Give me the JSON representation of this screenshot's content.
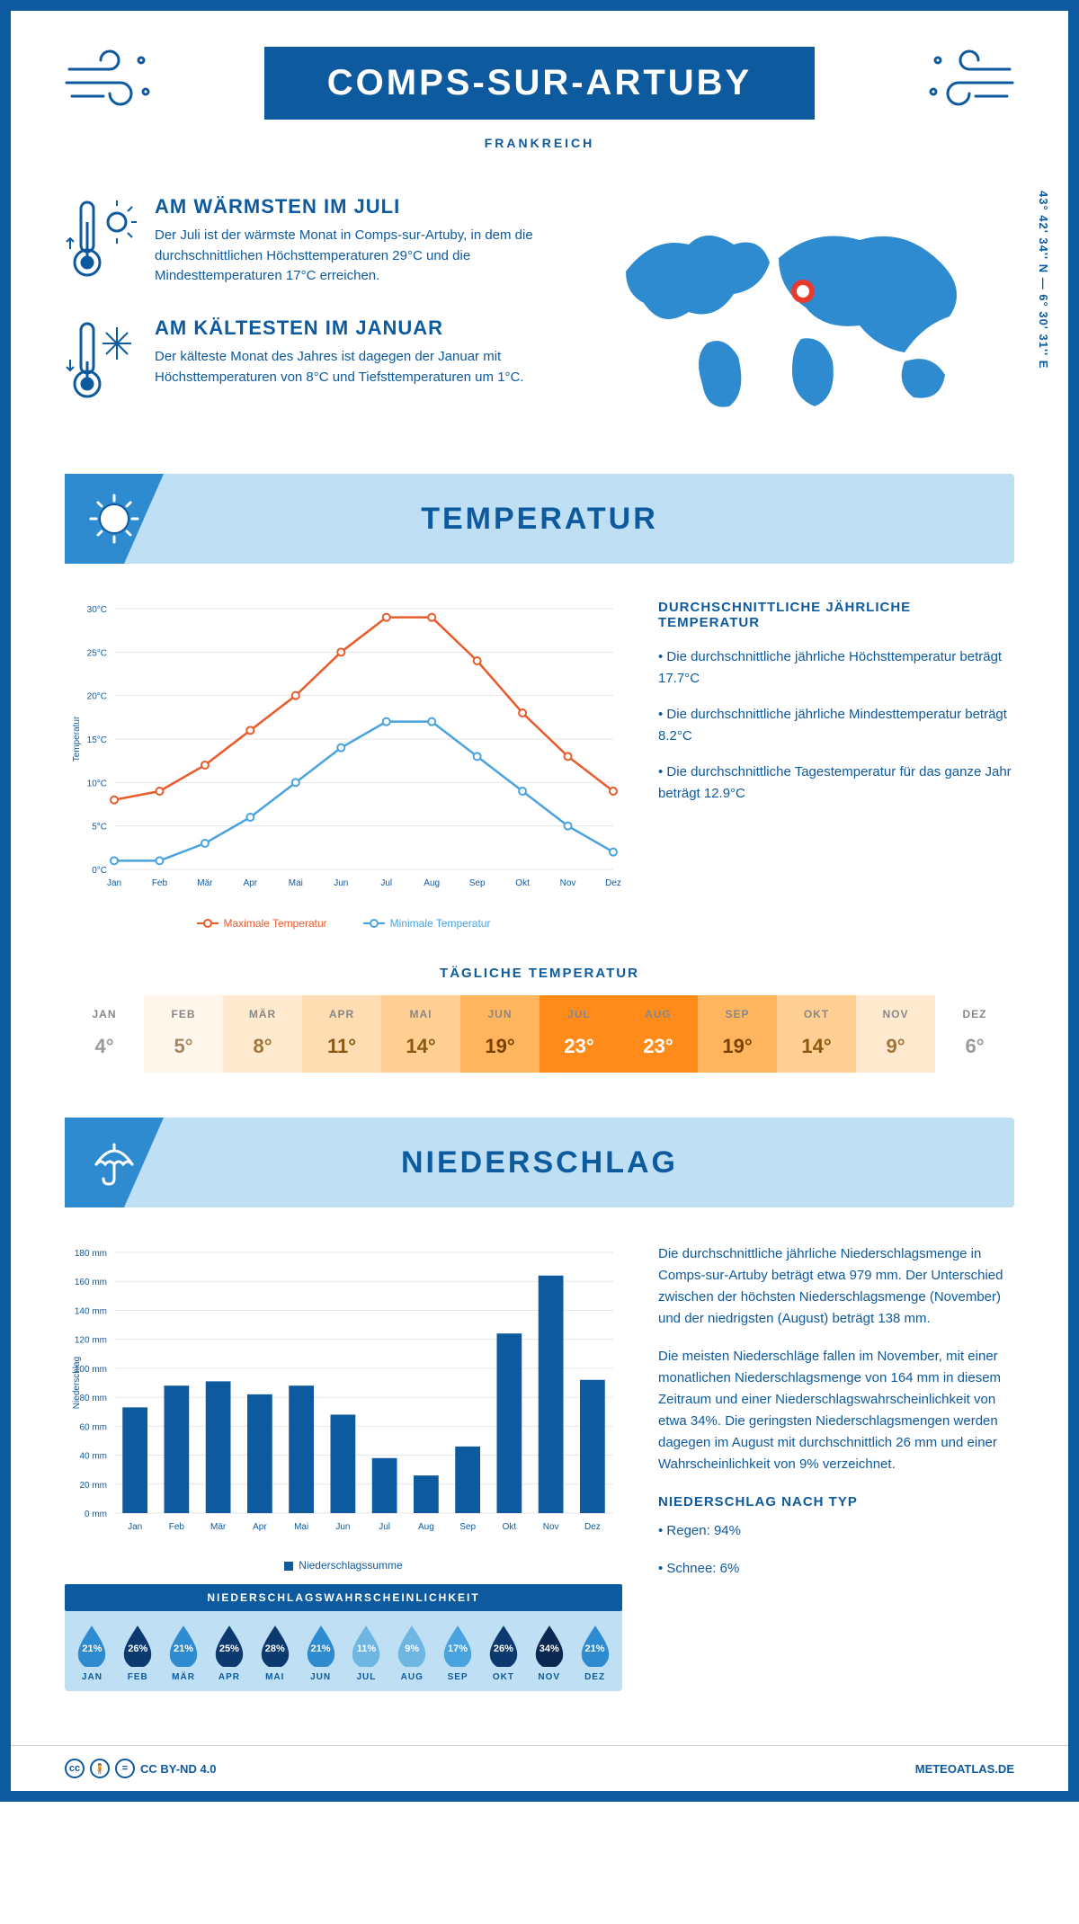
{
  "colors": {
    "primary": "#0d5a9e",
    "light": "#bfdff5",
    "mid": "#2f8bd0",
    "accent_max": "#e85c2b",
    "accent_min": "#4aa3df",
    "marker_red": "#e63b2e"
  },
  "header": {
    "title": "COMPS-SUR-ARTUBY",
    "country": "FRANKREICH",
    "coords": "43° 42' 34'' N — 6° 30' 31'' E"
  },
  "info": {
    "warm_title": "AM WÄRMSTEN IM JULI",
    "warm_text": "Der Juli ist der wärmste Monat in Comps-sur-Artuby, in dem die durchschnittlichen Höchsttemperaturen 29°C und die Mindesttemperaturen 17°C erreichen.",
    "cold_title": "AM KÄLTESTEN IM JANUAR",
    "cold_text": "Der kälteste Monat des Jahres ist dagegen der Januar mit Höchsttemperaturen von 8°C und Tiefsttemperaturen um 1°C."
  },
  "sections": {
    "temp_title": "TEMPERATUR",
    "precip_title": "NIEDERSCHLAG"
  },
  "temp_side": {
    "heading": "DURCHSCHNITTLICHE JÄHRLICHE TEMPERATUR",
    "b1": "• Die durchschnittliche jährliche Höchsttemperatur beträgt 17.7°C",
    "b2": "• Die durchschnittliche jährliche Mindesttemperatur beträgt 8.2°C",
    "b3": "• Die durchschnittliche Tagestemperatur für das ganze Jahr beträgt 12.9°C"
  },
  "temp_chart": {
    "type": "line",
    "months": [
      "Jan",
      "Feb",
      "Mär",
      "Apr",
      "Mai",
      "Jun",
      "Jul",
      "Aug",
      "Sep",
      "Okt",
      "Nov",
      "Dez"
    ],
    "max": [
      8,
      9,
      12,
      16,
      20,
      25,
      29,
      29,
      24,
      18,
      13,
      9
    ],
    "min": [
      1,
      1,
      3,
      6,
      10,
      14,
      17,
      17,
      13,
      9,
      5,
      2
    ],
    "ylim": [
      0,
      30
    ],
    "ytick_step": 5,
    "y_label": "Temperatur",
    "legend_max": "Maximale Temperatur",
    "legend_min": "Minimale Temperatur",
    "max_color": "#e85c2b",
    "min_color": "#4aa3df",
    "grid_color": "#e6e6e6"
  },
  "daily": {
    "title": "TÄGLICHE TEMPERATUR",
    "months": [
      "JAN",
      "FEB",
      "MÄR",
      "APR",
      "MAI",
      "JUN",
      "JUL",
      "AUG",
      "SEP",
      "OKT",
      "NOV",
      "DEZ"
    ],
    "values": [
      "4°",
      "5°",
      "8°",
      "11°",
      "14°",
      "19°",
      "23°",
      "23°",
      "19°",
      "14°",
      "9°",
      "6°"
    ],
    "bg_colors": [
      "#ffffff",
      "#fff6ec",
      "#ffe9cf",
      "#ffddb3",
      "#ffcf93",
      "#ffb45e",
      "#ff8c1a",
      "#ff8c1a",
      "#ffb45e",
      "#ffcf93",
      "#ffe9cf",
      "#ffffff"
    ],
    "fg_colors": [
      "#9a9a9a",
      "#a38864",
      "#a07636",
      "#8a5a10",
      "#8a5a10",
      "#7a4400",
      "#ffffff",
      "#ffffff",
      "#7a4400",
      "#8a5a10",
      "#a07636",
      "#9a9a9a"
    ]
  },
  "precip_chart": {
    "type": "bar",
    "months": [
      "Jan",
      "Feb",
      "Mär",
      "Apr",
      "Mai",
      "Jun",
      "Jul",
      "Aug",
      "Sep",
      "Okt",
      "Nov",
      "Dez"
    ],
    "values": [
      73,
      88,
      91,
      82,
      88,
      68,
      38,
      26,
      46,
      124,
      164,
      92
    ],
    "ylim": [
      0,
      180
    ],
    "ytick_step": 20,
    "y_label": "Niederschlag",
    "bar_color": "#0d5a9e",
    "grid_color": "#e6e6e6",
    "legend": "Niederschlagssumme"
  },
  "precip_side": {
    "p1": "Die durchschnittliche jährliche Niederschlagsmenge in Comps-sur-Artuby beträgt etwa 979 mm. Der Unterschied zwischen der höchsten Niederschlagsmenge (November) und der niedrigsten (August) beträgt 138 mm.",
    "p2": "Die meisten Niederschläge fallen im November, mit einer monatlichen Niederschlagsmenge von 164 mm in diesem Zeitraum und einer Niederschlagswahrscheinlichkeit von etwa 34%. Die geringsten Niederschlagsmengen werden dagegen im August mit durchschnittlich 26 mm und einer Wahrscheinlichkeit von 9% verzeichnet.",
    "type_heading": "NIEDERSCHLAG NACH TYP",
    "type1": "• Regen: 94%",
    "type2": "• Schnee: 6%"
  },
  "prob": {
    "title": "NIEDERSCHLAGSWAHRSCHEINLICHKEIT",
    "months": [
      "JAN",
      "FEB",
      "MÄR",
      "APR",
      "MAI",
      "JUN",
      "JUL",
      "AUG",
      "SEP",
      "OKT",
      "NOV",
      "DEZ"
    ],
    "pct": [
      "21%",
      "26%",
      "21%",
      "25%",
      "28%",
      "21%",
      "11%",
      "9%",
      "17%",
      "26%",
      "34%",
      "21%"
    ],
    "fill": [
      "#2f8bd0",
      "#0d3a6e",
      "#2f8bd0",
      "#0d3a6e",
      "#0d3a6e",
      "#2f8bd0",
      "#6fb6e3",
      "#6fb6e3",
      "#4aa3df",
      "#0d3a6e",
      "#0a2850",
      "#2f8bd0"
    ]
  },
  "footer": {
    "license": "CC BY-ND 4.0",
    "brand": "METEOATLAS.DE"
  }
}
